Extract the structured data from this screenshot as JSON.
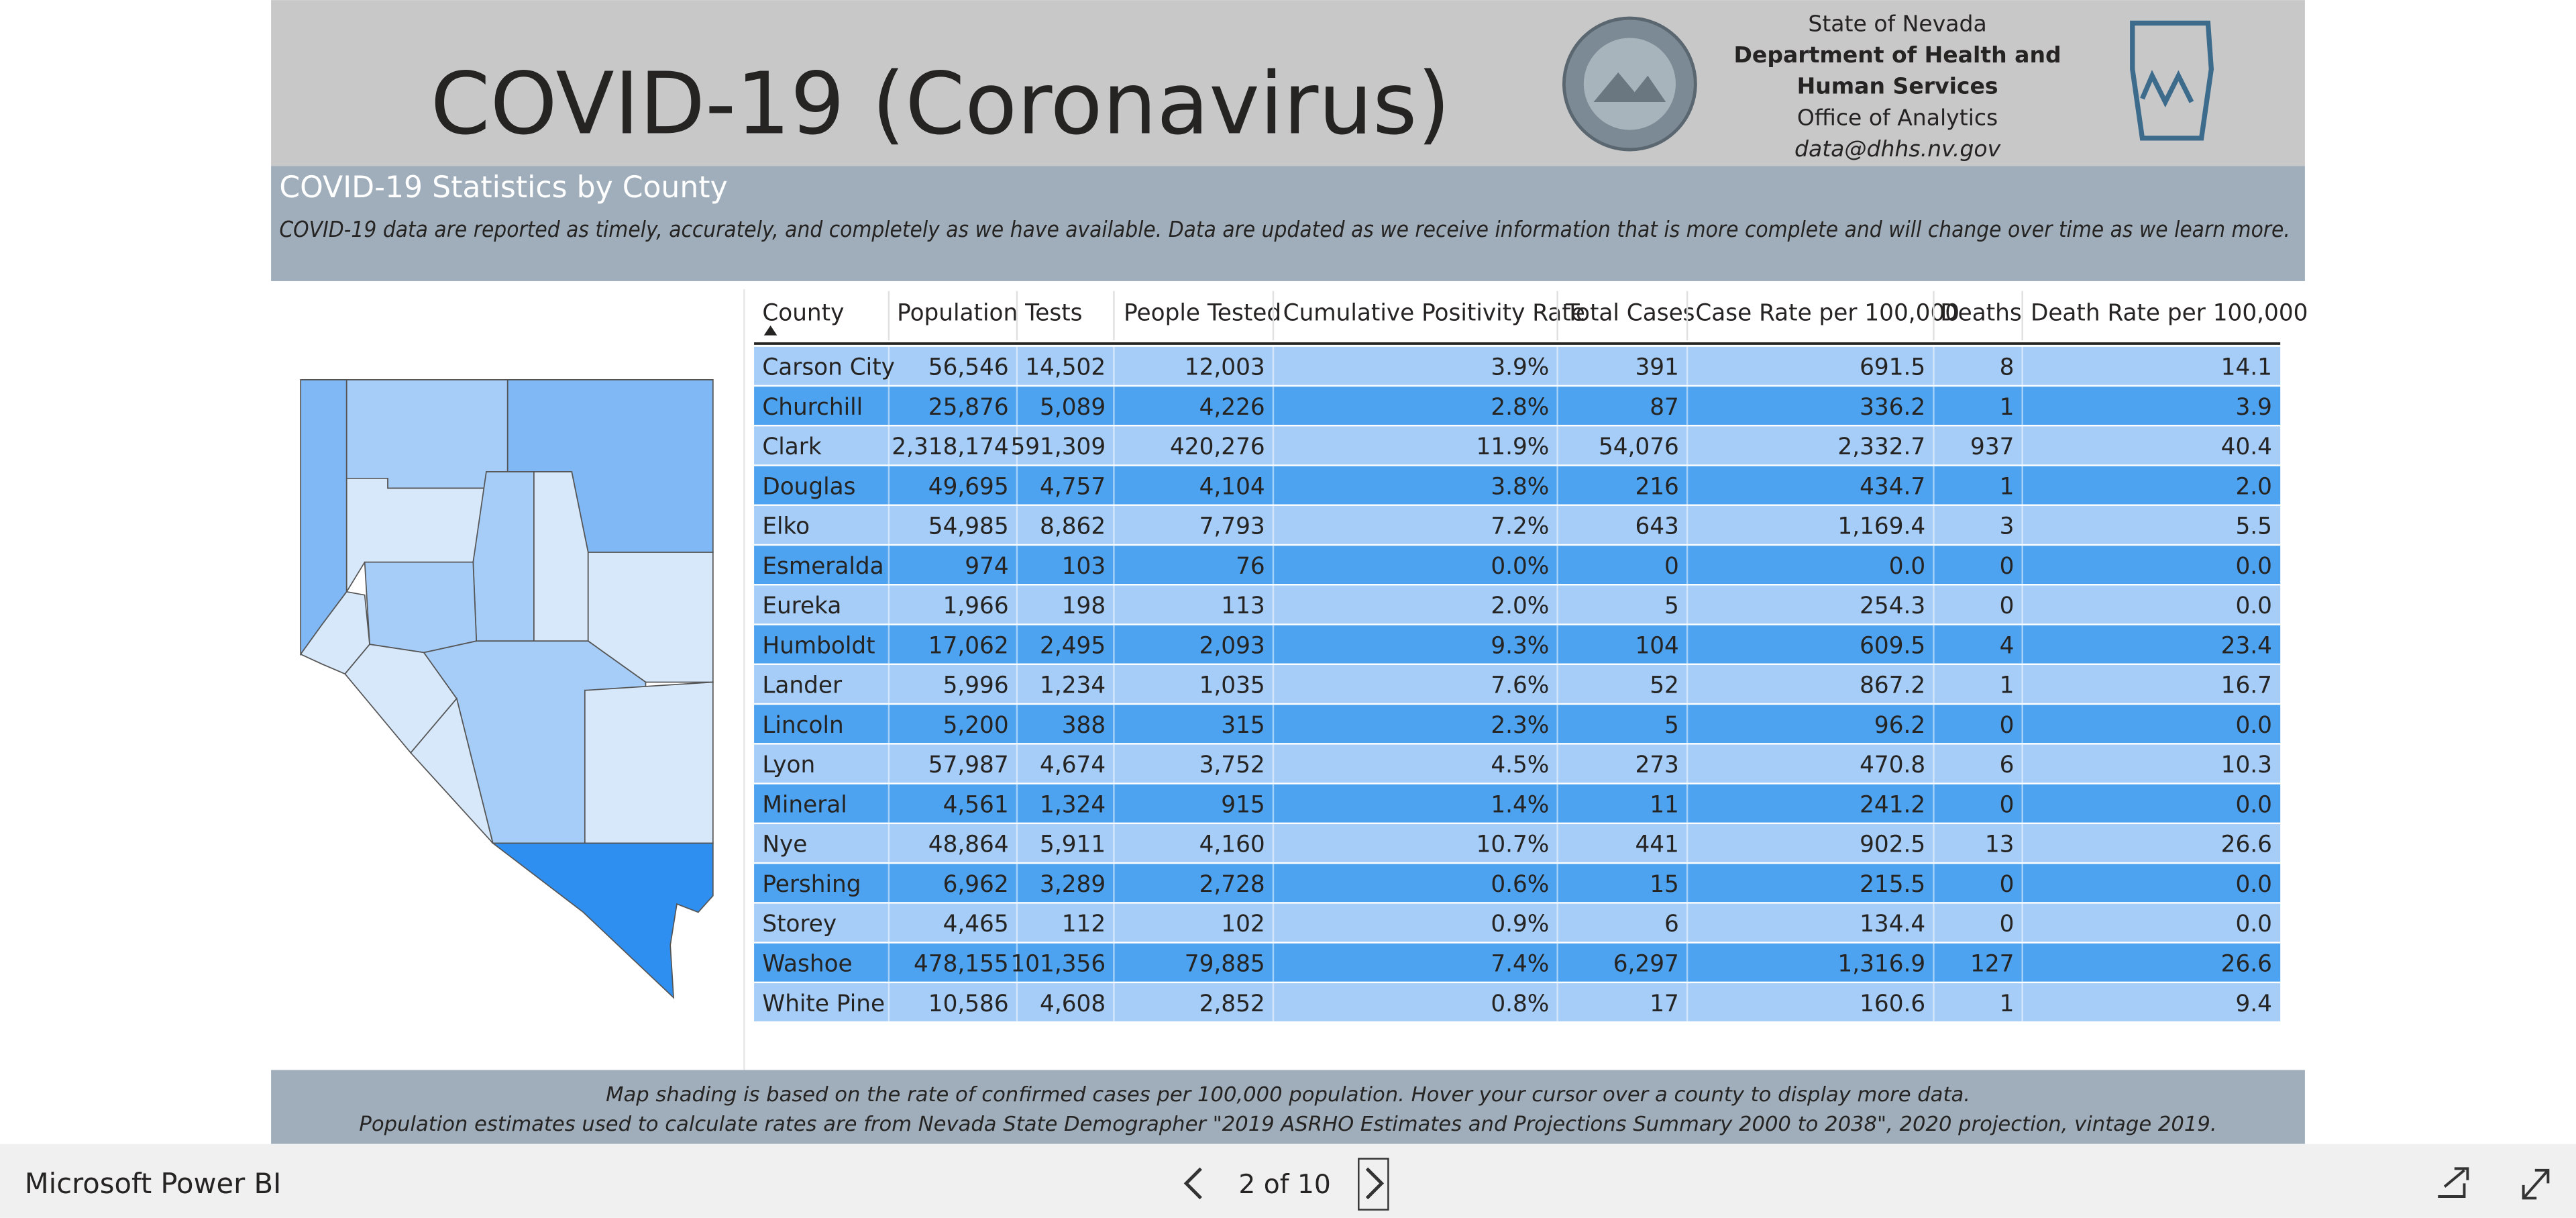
{
  "header": {
    "title": "COVID-19 (Coronavirus)",
    "agency": [
      "State of Nevada",
      "Department of Health and",
      "Human Services",
      "Office of Analytics",
      "data@dhhs.nv.gov"
    ]
  },
  "banner": {
    "title": "COVID-19 Statistics by County",
    "note": "COVID-19 data are reported as timely, accurately, and completely as we have available.  Data are updated as we receive information that is more complete and will change over time as we learn more."
  },
  "table": {
    "columns": [
      "County",
      "Population",
      "Tests",
      "People Tested",
      "Cumulative Positivity Rate",
      "Total Cases",
      "Case Rate per 100,000",
      "Deaths",
      "Death Rate per 100,000"
    ],
    "rows": [
      [
        "Carson City",
        "56,546",
        "14,502",
        "12,003",
        "3.9%",
        "391",
        "691.5",
        "8",
        "14.1"
      ],
      [
        "Churchill",
        "25,876",
        "5,089",
        "4,226",
        "2.8%",
        "87",
        "336.2",
        "1",
        "3.9"
      ],
      [
        "Clark",
        "2,318,174",
        "591,309",
        "420,276",
        "11.9%",
        "54,076",
        "2,332.7",
        "937",
        "40.4"
      ],
      [
        "Douglas",
        "49,695",
        "4,757",
        "4,104",
        "3.8%",
        "216",
        "434.7",
        "1",
        "2.0"
      ],
      [
        "Elko",
        "54,985",
        "8,862",
        "7,793",
        "7.2%",
        "643",
        "1,169.4",
        "3",
        "5.5"
      ],
      [
        "Esmeralda",
        "974",
        "103",
        "76",
        "0.0%",
        "0",
        "0.0",
        "0",
        "0.0"
      ],
      [
        "Eureka",
        "1,966",
        "198",
        "113",
        "2.0%",
        "5",
        "254.3",
        "0",
        "0.0"
      ],
      [
        "Humboldt",
        "17,062",
        "2,495",
        "2,093",
        "9.3%",
        "104",
        "609.5",
        "4",
        "23.4"
      ],
      [
        "Lander",
        "5,996",
        "1,234",
        "1,035",
        "7.6%",
        "52",
        "867.2",
        "1",
        "16.7"
      ],
      [
        "Lincoln",
        "5,200",
        "388",
        "315",
        "2.3%",
        "5",
        "96.2",
        "0",
        "0.0"
      ],
      [
        "Lyon",
        "57,987",
        "4,674",
        "3,752",
        "4.5%",
        "273",
        "470.8",
        "6",
        "10.3"
      ],
      [
        "Mineral",
        "4,561",
        "1,324",
        "915",
        "1.4%",
        "11",
        "241.2",
        "0",
        "0.0"
      ],
      [
        "Nye",
        "48,864",
        "5,911",
        "4,160",
        "10.7%",
        "441",
        "902.5",
        "13",
        "26.6"
      ],
      [
        "Pershing",
        "6,962",
        "3,289",
        "2,728",
        "0.6%",
        "15",
        "215.5",
        "0",
        "0.0"
      ],
      [
        "Storey",
        "4,465",
        "112",
        "102",
        "0.9%",
        "6",
        "134.4",
        "0",
        "0.0"
      ],
      [
        "Washoe",
        "478,155",
        "101,356",
        "79,885",
        "7.4%",
        "6,297",
        "1,316.9",
        "127",
        "26.6"
      ],
      [
        "White Pine",
        "10,586",
        "4,608",
        "2,852",
        "0.8%",
        "17",
        "160.6",
        "1",
        "9.4"
      ]
    ]
  },
  "footer": {
    "lines": [
      "Map shading is based on the rate of confirmed cases per 100,000 population.  Hover your cursor over a county to display more data.",
      "Population estimates used to calculate rates are from Nevada State Demographer \"2019 ASRHO Estimates and Projections Summary 2000 to 2038\", 2020 projection, vintage 2019."
    ]
  },
  "toolbar": {
    "brand": "Microsoft Power BI",
    "page": "2 of 10"
  }
}
